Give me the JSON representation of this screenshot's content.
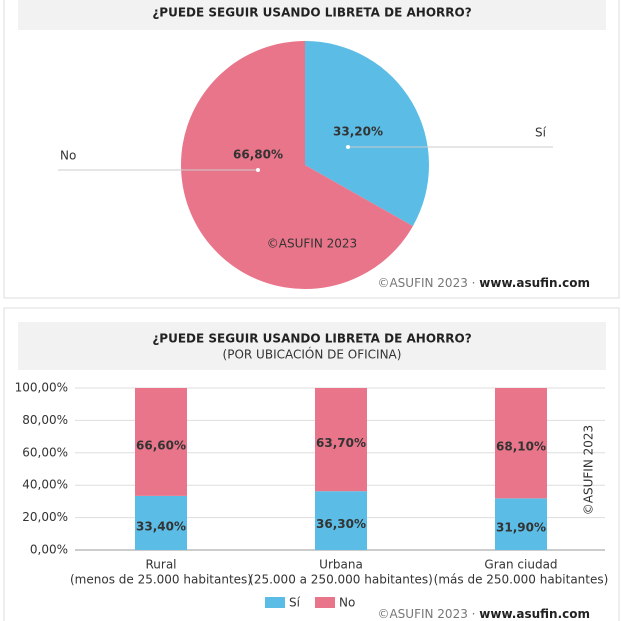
{
  "chart_data": [
    {
      "type": "pie",
      "title": "¿PUEDE SEGUIR USANDO LIBRETA DE AHORRO?",
      "categories": [
        "Sí",
        "No"
      ],
      "values": [
        33.2,
        66.8
      ],
      "value_labels": [
        "33,20%",
        "66,80%"
      ],
      "colors": [
        "#5bbde6",
        "#e9758a"
      ],
      "watermark": "©ASUFIN 2023",
      "source": "©ASUFIN 2023 ·",
      "source_url": "www.asufin.com"
    },
    {
      "type": "stacked-bar",
      "title": "¿PUEDE SEGUIR USANDO LIBRETA DE AHORRO?",
      "subtitle": "(POR UBICACIÓN DE OFICINA)",
      "categories": [
        "Rural",
        "Urbana",
        "Gran ciudad"
      ],
      "category_notes": [
        "(menos de 25.000 habitantes)",
        "(25.000 a 250.000 habitantes)",
        "(más de 250.000 habitantes)"
      ],
      "series": [
        {
          "name": "Sí",
          "color": "#5bbde6",
          "values": [
            33.4,
            36.3,
            31.9
          ],
          "value_labels": [
            "33,40%",
            "36,30%",
            "31,90%"
          ]
        },
        {
          "name": "No",
          "color": "#e9758a",
          "values": [
            66.6,
            63.7,
            68.1
          ],
          "value_labels": [
            "66,60%",
            "63,70%",
            "68,10%"
          ]
        }
      ],
      "ylim": [
        0,
        100
      ],
      "yticks": [
        {
          "value": 0,
          "label": "0,00%"
        },
        {
          "value": 20,
          "label": "20,00%"
        },
        {
          "value": 40,
          "label": "40,00%"
        },
        {
          "value": 60,
          "label": "60,00%"
        },
        {
          "value": 80,
          "label": "80,00%"
        },
        {
          "value": 100,
          "label": "100,00%"
        }
      ],
      "grid": true,
      "legend": "bottom",
      "watermark": "©ASUFIN 2023",
      "source": "©ASUFIN 2023 ·",
      "source_url": "www.asufin.com"
    }
  ]
}
